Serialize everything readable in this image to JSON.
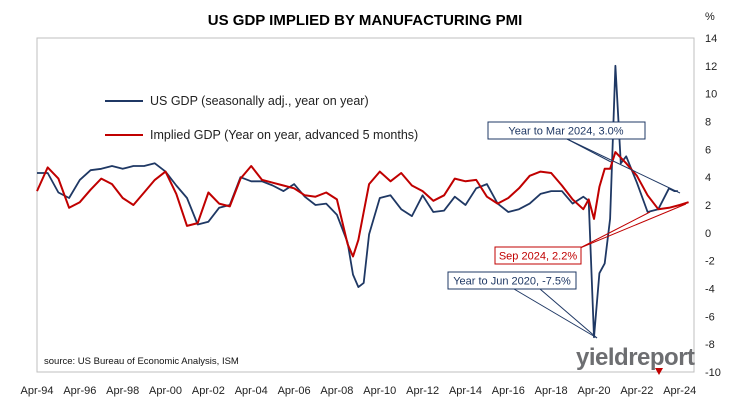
{
  "chart_data": {
    "type": "line",
    "title": "US GDP IMPLIED BY MANUFACTURING PMI",
    "y_unit": "%",
    "ylim": [
      -10,
      14
    ],
    "y_ticks": [
      14,
      12,
      10,
      8,
      6,
      4,
      2,
      0,
      -2,
      -4,
      -6,
      -8,
      -10
    ],
    "y_axis_side": "right",
    "xlim": [
      "1994-04",
      "2024-12"
    ],
    "x_ticks": [
      "Apr-94",
      "Apr-96",
      "Apr-98",
      "Apr-00",
      "Apr-02",
      "Apr-04",
      "Apr-06",
      "Apr-08",
      "Apr-10",
      "Apr-12",
      "Apr-14",
      "Apr-16",
      "Apr-18",
      "Apr-20",
      "Apr-22",
      "Apr-24"
    ],
    "grid": false,
    "legend": "upper-left",
    "series": [
      {
        "name": "US GDP (seasonally adj., year on year)",
        "color": "#1f3864",
        "x": [
          "1994-04",
          "1994-10",
          "1995-04",
          "1995-10",
          "1996-04",
          "1996-10",
          "1997-04",
          "1997-10",
          "1998-04",
          "1998-10",
          "1999-04",
          "1999-10",
          "2000-04",
          "2000-10",
          "2001-04",
          "2001-10",
          "2002-04",
          "2002-10",
          "2003-04",
          "2003-10",
          "2004-04",
          "2004-10",
          "2005-04",
          "2005-10",
          "2006-04",
          "2006-10",
          "2007-04",
          "2007-10",
          "2008-04",
          "2008-10",
          "2009-01",
          "2009-04",
          "2009-07",
          "2009-10",
          "2010-04",
          "2010-10",
          "2011-04",
          "2011-10",
          "2012-04",
          "2012-10",
          "2013-04",
          "2013-10",
          "2014-04",
          "2014-10",
          "2015-04",
          "2015-10",
          "2016-04",
          "2016-10",
          "2017-04",
          "2017-10",
          "2018-04",
          "2018-10",
          "2019-04",
          "2019-10",
          "2020-01",
          "2020-04",
          "2020-07",
          "2020-10",
          "2021-01",
          "2021-04",
          "2021-07",
          "2021-10",
          "2022-04",
          "2022-10",
          "2023-04",
          "2023-10",
          "2024-01",
          "2024-03"
        ],
        "values": [
          4.3,
          4.3,
          2.9,
          2.5,
          3.8,
          4.5,
          4.6,
          4.8,
          4.6,
          4.8,
          4.8,
          5.0,
          4.4,
          3.4,
          2.5,
          0.6,
          0.8,
          1.8,
          2.0,
          4.0,
          3.7,
          3.7,
          3.4,
          3.0,
          3.5,
          2.6,
          2.0,
          2.1,
          1.3,
          -0.7,
          -3.0,
          -3.9,
          -3.6,
          -0.1,
          2.5,
          2.7,
          1.7,
          1.2,
          2.7,
          1.5,
          1.6,
          2.6,
          2.0,
          3.2,
          3.5,
          2.1,
          1.5,
          1.7,
          2.1,
          2.8,
          3.0,
          3.0,
          2.1,
          2.6,
          2.3,
          -7.5,
          -2.9,
          -2.2,
          1.0,
          12.0,
          5.0,
          5.5,
          3.6,
          1.5,
          1.7,
          3.2,
          3.0,
          3.0
        ]
      },
      {
        "name": "Implied GDP (Year on year, advanced 5 months)",
        "color": "#c00000",
        "x": [
          "1994-04",
          "1994-10",
          "1995-04",
          "1995-10",
          "1996-04",
          "1996-10",
          "1997-04",
          "1997-10",
          "1998-04",
          "1998-10",
          "1999-04",
          "1999-10",
          "2000-04",
          "2000-10",
          "2001-04",
          "2001-10",
          "2002-04",
          "2002-10",
          "2003-04",
          "2003-10",
          "2004-04",
          "2004-10",
          "2005-04",
          "2005-10",
          "2006-04",
          "2006-10",
          "2007-04",
          "2007-10",
          "2008-04",
          "2008-10",
          "2009-01",
          "2009-04",
          "2009-07",
          "2009-10",
          "2010-04",
          "2010-10",
          "2011-04",
          "2011-10",
          "2012-04",
          "2012-10",
          "2013-04",
          "2013-10",
          "2014-04",
          "2014-10",
          "2015-04",
          "2015-10",
          "2016-04",
          "2016-10",
          "2017-04",
          "2017-10",
          "2018-04",
          "2018-10",
          "2019-04",
          "2019-10",
          "2020-01",
          "2020-04",
          "2020-07",
          "2020-10",
          "2021-01",
          "2021-04",
          "2021-07",
          "2021-10",
          "2022-04",
          "2022-10",
          "2023-04",
          "2023-10",
          "2024-04",
          "2024-09"
        ],
        "values": [
          3.0,
          4.7,
          3.9,
          1.8,
          2.2,
          3.1,
          3.9,
          3.5,
          2.5,
          2.0,
          2.9,
          3.8,
          4.4,
          2.8,
          0.5,
          0.7,
          2.9,
          2.1,
          1.9,
          3.9,
          4.8,
          3.8,
          3.6,
          3.4,
          3.2,
          2.7,
          2.6,
          2.9,
          2.4,
          -0.8,
          -1.7,
          -0.5,
          1.5,
          3.5,
          4.4,
          3.7,
          4.3,
          3.4,
          3.0,
          2.3,
          2.7,
          3.9,
          3.7,
          3.8,
          2.6,
          2.1,
          2.5,
          3.2,
          4.1,
          4.4,
          4.3,
          3.4,
          2.4,
          1.7,
          2.4,
          1.0,
          3.3,
          4.6,
          4.6,
          5.8,
          5.4,
          5.0,
          4.1,
          2.7,
          1.7,
          1.8,
          2.0,
          2.2
        ]
      }
    ],
    "annotations": {
      "mar2024": "Year to Mar 2024, 3.0%",
      "sep2024": "Sep 2024, 2.2%",
      "jun2020": "Year to Jun 2020, -7.5%"
    },
    "source": "source: US Bureau of Economic Analysis, ISM"
  },
  "brand": {
    "name_plain": "yield",
    "name_bold": "report",
    "color": "#6d6e71",
    "accent_color": "#c00000"
  }
}
